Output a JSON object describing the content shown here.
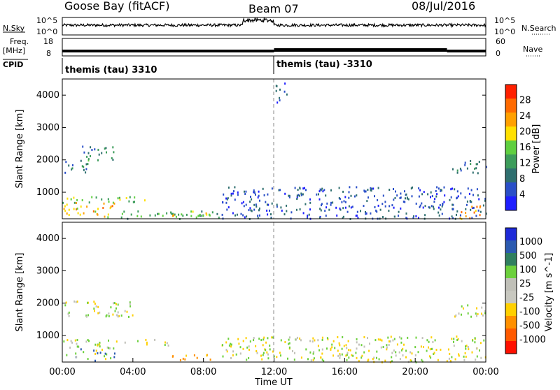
{
  "header": {
    "station": "Goose Bay (fitACF)",
    "beam": "Beam 07",
    "date": "08/Jul/2016"
  },
  "top_panels": {
    "nsky_label": "N.Sky",
    "nsearch_label": "N.Search",
    "nsky_ticks": [
      "10^5",
      "10^0"
    ],
    "nsearch_ticks": [
      "10^5",
      "10^0"
    ],
    "freq_label": "Freq.",
    "freq_unit": "[MHz]",
    "freq_ticks": [
      "18",
      "8"
    ],
    "nave_label": "Nave",
    "nave_ticks": [
      "60",
      "0"
    ],
    "cpid_label": "CPID",
    "cpid_segments": [
      {
        "start": "00:00",
        "text": "themis (tau) 3310"
      },
      {
        "start": "12:00",
        "text": "themis (tau) -3310"
      }
    ]
  },
  "xaxis": {
    "title": "Time UT",
    "ticks": [
      "00:00",
      "04:00",
      "08:00",
      "12:00",
      "16:00",
      "20:00",
      "00:00"
    ]
  },
  "colors": {
    "power": [
      "#1e1eff",
      "#2a4fc8",
      "#2f6f6f",
      "#3c9c5a",
      "#5fcf3f",
      "#ffe000",
      "#ffa000",
      "#ff6a00",
      "#ff2000"
    ],
    "velocity": [
      "#1e2ad8",
      "#2b5ab0",
      "#2f7f5f",
      "#6cd03c",
      "#c0c0b8",
      "#c8c8c0",
      "#ffd000",
      "#ff9000",
      "#ff5a00",
      "#ff1000"
    ]
  },
  "chart_data": [
    {
      "type": "heatmap",
      "title": "Power",
      "xlabel": "Time UT",
      "ylabel": "Slant Range [km]",
      "xlim": [
        0,
        24
      ],
      "ylim": [
        180,
        4500
      ],
      "yticks": [
        "1000",
        "2000",
        "3000",
        "4000"
      ],
      "colorbar": {
        "label": "Power [dB]",
        "ticks": [
          "4",
          "8",
          "12",
          "16",
          "20",
          "24",
          "28"
        ],
        "range": [
          0,
          30
        ]
      },
      "echo_regions": [
        {
          "t0": 0.0,
          "t1": 1.5,
          "r0": 1600,
          "r1": 2000,
          "level": 8
        },
        {
          "t0": 1.0,
          "t1": 3.0,
          "r0": 2000,
          "r1": 2500,
          "level": 10
        },
        {
          "t0": 0.0,
          "t1": 5.5,
          "r0": 700,
          "r1": 900,
          "level": 14
        },
        {
          "t0": 0.0,
          "t1": 3.0,
          "r0": 250,
          "r1": 700,
          "level": 20
        },
        {
          "t0": 3.0,
          "t1": 9.0,
          "r0": 200,
          "r1": 450,
          "level": 12
        },
        {
          "t0": 6.0,
          "t1": 8.5,
          "r0": 250,
          "r1": 450,
          "level": 18
        },
        {
          "t0": 9.0,
          "t1": 24.0,
          "r0": 200,
          "r1": 1200,
          "level": 6
        },
        {
          "t0": 22.0,
          "t1": 24.0,
          "r0": 1600,
          "r1": 2000,
          "level": 8
        },
        {
          "t0": 22.5,
          "t1": 24.0,
          "r0": 200,
          "r1": 600,
          "level": 22
        },
        {
          "t0": 12.0,
          "t1": 12.8,
          "r0": 3800,
          "r1": 4400,
          "level": 6
        }
      ]
    },
    {
      "type": "heatmap",
      "title": "Velocity",
      "xlabel": "Time UT",
      "ylabel": "Slant Range [km]",
      "xlim": [
        0,
        24
      ],
      "ylim": [
        180,
        4500
      ],
      "yticks": [
        "1000",
        "2000",
        "3000",
        "4000"
      ],
      "colorbar": {
        "label": "Velocity [m s^-1]",
        "ticks": [
          "1000",
          "500",
          "100",
          "25",
          "-25",
          "-100",
          "-500",
          "-1000"
        ]
      },
      "echo_regions": [
        {
          "t0": 0.0,
          "t1": 4.0,
          "r0": 1600,
          "r1": 2100,
          "level": 0
        },
        {
          "t0": 0.0,
          "t1": 6.0,
          "r0": 700,
          "r1": 900,
          "level": 0
        },
        {
          "t0": 0.0,
          "t1": 3.0,
          "r0": 250,
          "r1": 700,
          "level": 50
        },
        {
          "t0": 6.0,
          "t1": 8.5,
          "r0": 250,
          "r1": 450,
          "level": -150
        },
        {
          "t0": 9.0,
          "t1": 24.0,
          "r0": 200,
          "r1": 1000,
          "level": 0
        },
        {
          "t0": 22.0,
          "t1": 24.0,
          "r0": 1600,
          "r1": 2000,
          "level": 0
        }
      ]
    }
  ]
}
